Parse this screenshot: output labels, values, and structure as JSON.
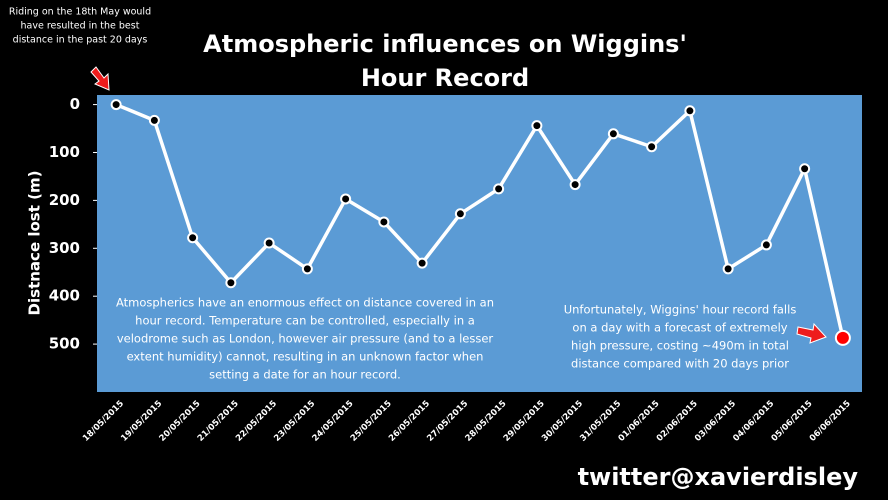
{
  "chart_data": {
    "type": "line",
    "title_lines": [
      "Atmospheric influences on Wiggins'",
      "Hour Record"
    ],
    "y_label": "Distnace lost (m)",
    "categories": [
      "18/05/2015",
      "19/05/2015",
      "20/05/2015",
      "21/05/2015",
      "22/05/2015",
      "23/05/2015",
      "24/05/2015",
      "25/05/2015",
      "26/05/2015",
      "27/05/2015",
      "28/05/2015",
      "29/05/2015",
      "30/05/2015",
      "31/05/2015",
      "01/06/2015",
      "02/06/2015",
      "03/06/2015",
      "04/06/2015",
      "05/06/2015",
      "06/06/2015"
    ],
    "values": [
      0,
      33,
      278,
      372,
      289,
      343,
      197,
      245,
      331,
      228,
      176,
      44,
      167,
      61,
      88,
      13,
      343,
      293,
      134,
      487
    ],
    "color": "#ffffff",
    "marker_colors": [
      "#000000",
      "#000000",
      "#000000",
      "#000000",
      "#000000",
      "#000000",
      "#000000",
      "#000000",
      "#000000",
      "#000000",
      "#000000",
      "#000000",
      "#000000",
      "#000000",
      "#000000",
      "#000000",
      "#000000",
      "#000000",
      "#000000",
      "#ff0000"
    ],
    "ylim": [
      -20,
      600
    ],
    "y_inverted": true,
    "yticks": [
      0,
      100,
      200,
      300,
      400,
      500
    ],
    "annotations": [
      {
        "lines": [
          "Riding on the 18th May would",
          "have resulted in the best",
          "distance in the past 20 days"
        ]
      },
      {
        "lines": [
          "Atmospherics have an enormous effect on distance covered in an",
          "hour record. Temperature can be controlled, especially in a",
          "velodrome such as London, however air pressure (and to a lesser",
          "extent humidity) cannot, resulting in an unknown factor when",
          "setting a date for an hour record."
        ]
      },
      {
        "lines": [
          "Unfortunately, Wiggins' hour record falls",
          "on a day with a forecast of extremely",
          "high pressure, costing ~490m in total",
          "distance compared with 20 days prior"
        ]
      }
    ],
    "credit": "twitter@xavierdisley"
  }
}
